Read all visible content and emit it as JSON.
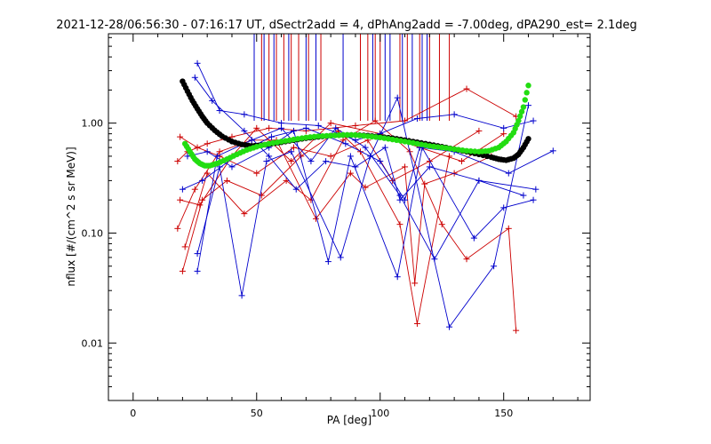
{
  "chart_data": {
    "type": "scatter",
    "title": "2021-12-28/06:56:30 - 07:16:17 UT, dSectr2add = 4, dPhAng2add = -7.00deg, dPA290_est=   2.1deg",
    "xlabel": "PA [deg]",
    "ylabel": "nflux [#/(cm^2 s sr MeV)]",
    "xlim": [
      -10,
      185
    ],
    "ylim": [
      0.003,
      6.5
    ],
    "yscale": "log",
    "grid": false,
    "x_ticks": [
      0,
      50,
      100,
      150
    ],
    "x_tick_labels": [
      "0",
      "50",
      "100",
      "150"
    ],
    "y_ticks": [
      0.01,
      0.1,
      1.0
    ],
    "y_tick_labels": [
      "0.01",
      "0.10",
      "1.00"
    ],
    "colors": {
      "red_series": "#cc0000",
      "blue_series": "#0000cc",
      "black_fit": "#000000",
      "green_fit": "#22dd11"
    },
    "series": [
      {
        "color": "red_series",
        "style": "line+plus",
        "lines": [
          [
            [
              18,
              0.45
            ],
            [
              22,
              0.55
            ],
            [
              30,
              0.65
            ],
            [
              40,
              0.75
            ],
            [
              55,
              0.9
            ],
            [
              70,
              0.85
            ],
            [
              90,
              0.95
            ],
            [
              110,
              1.05
            ],
            [
              135,
              2.05
            ],
            [
              155,
              1.15
            ]
          ],
          [
            [
              19,
              0.75
            ],
            [
              26,
              0.6
            ],
            [
              35,
              0.5
            ],
            [
              50,
              0.35
            ],
            [
              65,
              0.6
            ],
            [
              80,
              0.5
            ],
            [
              95,
              0.7
            ],
            [
              105,
              0.3
            ],
            [
              120,
              0.45
            ],
            [
              140,
              0.85
            ]
          ],
          [
            [
              20,
              0.045
            ],
            [
              28,
              0.2
            ],
            [
              38,
              0.3
            ],
            [
              52,
              0.22
            ],
            [
              68,
              0.5
            ],
            [
              83,
              0.85
            ],
            [
              92,
              0.55
            ],
            [
              108,
              0.12
            ],
            [
              115,
              0.015
            ],
            [
              128,
              0.5
            ]
          ],
          [
            [
              21,
              0.075
            ],
            [
              30,
              0.35
            ],
            [
              45,
              0.15
            ],
            [
              62,
              0.3
            ],
            [
              72,
              0.2
            ],
            [
              85,
              0.7
            ],
            [
              98,
              1.05
            ],
            [
              112,
              0.55
            ],
            [
              125,
              0.12
            ],
            [
              135,
              0.058
            ],
            [
              152,
              0.11
            ],
            [
              155,
              0.013
            ]
          ],
          [
            [
              18,
              0.11
            ],
            [
              25,
              0.25
            ],
            [
              35,
              0.55
            ],
            [
              48,
              0.7
            ],
            [
              58,
              0.7
            ],
            [
              74,
              0.135
            ],
            [
              88,
              0.35
            ],
            [
              94,
              0.26
            ],
            [
              110,
              0.4
            ],
            [
              114,
              0.035
            ],
            [
              118,
              0.28
            ],
            [
              130,
              0.35
            ],
            [
              145,
              0.5
            ]
          ],
          [
            [
              19,
              0.2
            ],
            [
              27,
              0.18
            ],
            [
              40,
              0.5
            ],
            [
              50,
              0.9
            ],
            [
              64,
              0.45
            ],
            [
              80,
              1.0
            ],
            [
              100,
              0.8
            ],
            [
              116,
              0.6
            ],
            [
              133,
              0.45
            ],
            [
              150,
              0.8
            ]
          ]
        ]
      },
      {
        "color": "blue_series",
        "style": "line+plus",
        "lines": [
          [
            [
              26,
              3.5
            ],
            [
              35,
              1.3
            ],
            [
              45,
              1.2
            ],
            [
              60,
              1.0
            ],
            [
              75,
              0.95
            ],
            [
              90,
              0.7
            ],
            [
              100,
              0.8
            ],
            [
              115,
              1.1
            ],
            [
              130,
              1.2
            ],
            [
              150,
              0.9
            ],
            [
              162,
              1.05
            ]
          ],
          [
            [
              25,
              2.6
            ],
            [
              32,
              1.6
            ],
            [
              45,
              0.85
            ],
            [
              55,
              0.5
            ],
            [
              66,
              0.25
            ],
            [
              78,
              0.45
            ],
            [
              90,
              0.4
            ],
            [
              102,
              0.6
            ],
            [
              108,
              0.2
            ],
            [
              120,
              0.4
            ],
            [
              140,
              0.3
            ],
            [
              158,
              0.22
            ]
          ],
          [
            [
              26,
              0.065
            ],
            [
              35,
              0.4
            ],
            [
              44,
              0.027
            ],
            [
              54,
              0.45
            ],
            [
              64,
              0.55
            ],
            [
              84,
              0.06
            ],
            [
              96,
              0.5
            ],
            [
              107,
              1.7
            ],
            [
              128,
              0.014
            ],
            [
              146,
              0.05
            ],
            [
              160,
              1.45
            ]
          ],
          [
            [
              26,
              0.045
            ],
            [
              34,
              0.5
            ],
            [
              48,
              0.7
            ],
            [
              60,
              0.9
            ],
            [
              72,
              0.45
            ],
            [
              82,
              0.9
            ],
            [
              94,
              0.6
            ],
            [
              108,
              0.22
            ],
            [
              122,
              0.058
            ],
            [
              140,
              0.3
            ],
            [
              163,
              0.25
            ]
          ],
          [
            [
              20,
              0.25
            ],
            [
              28,
              0.3
            ],
            [
              44,
              0.55
            ],
            [
              56,
              0.75
            ],
            [
              70,
              0.9
            ],
            [
              86,
              0.65
            ],
            [
              100,
              0.45
            ],
            [
              110,
              0.2
            ],
            [
              116,
              0.6
            ],
            [
              130,
              0.55
            ],
            [
              152,
              0.35
            ],
            [
              170,
              0.56
            ]
          ],
          [
            [
              22,
              0.5
            ],
            [
              30,
              0.55
            ],
            [
              40,
              0.4
            ],
            [
              55,
              0.6
            ],
            [
              65,
              0.85
            ],
            [
              79,
              0.055
            ],
            [
              88,
              0.5
            ],
            [
              107,
              0.04
            ],
            [
              117,
              0.6
            ],
            [
              138,
              0.09
            ],
            [
              150,
              0.17
            ],
            [
              162,
              0.2
            ]
          ]
        ]
      }
    ],
    "fits": [
      {
        "color": "black_fit",
        "points": [
          [
            20,
            2.4
          ],
          [
            22,
            1.95
          ],
          [
            24,
            1.6
          ],
          [
            26,
            1.35
          ],
          [
            28,
            1.15
          ],
          [
            30,
            1.0
          ],
          [
            33,
            0.86
          ],
          [
            36,
            0.76
          ],
          [
            40,
            0.68
          ],
          [
            44,
            0.64
          ],
          [
            48,
            0.62
          ],
          [
            52,
            0.63
          ],
          [
            56,
            0.65
          ],
          [
            60,
            0.67
          ],
          [
            65,
            0.7
          ],
          [
            70,
            0.73
          ],
          [
            75,
            0.75
          ],
          [
            80,
            0.77
          ],
          [
            85,
            0.78
          ],
          [
            90,
            0.78
          ],
          [
            95,
            0.77
          ],
          [
            100,
            0.75
          ],
          [
            105,
            0.73
          ],
          [
            110,
            0.7
          ],
          [
            115,
            0.67
          ],
          [
            120,
            0.64
          ],
          [
            125,
            0.61
          ],
          [
            130,
            0.58
          ],
          [
            135,
            0.55
          ],
          [
            140,
            0.52
          ],
          [
            145,
            0.49
          ],
          [
            148,
            0.47
          ],
          [
            151,
            0.46
          ],
          [
            154,
            0.48
          ],
          [
            156,
            0.52
          ],
          [
            158,
            0.6
          ],
          [
            160,
            0.72
          ]
        ]
      },
      {
        "color": "green_fit",
        "points": [
          [
            21,
            0.65
          ],
          [
            23,
            0.55
          ],
          [
            25,
            0.47
          ],
          [
            27,
            0.43
          ],
          [
            29,
            0.41
          ],
          [
            31,
            0.41
          ],
          [
            34,
            0.43
          ],
          [
            38,
            0.47
          ],
          [
            42,
            0.52
          ],
          [
            46,
            0.57
          ],
          [
            50,
            0.61
          ],
          [
            55,
            0.65
          ],
          [
            60,
            0.68
          ],
          [
            65,
            0.71
          ],
          [
            70,
            0.74
          ],
          [
            75,
            0.76
          ],
          [
            80,
            0.77
          ],
          [
            85,
            0.78
          ],
          [
            90,
            0.78
          ],
          [
            95,
            0.76
          ],
          [
            100,
            0.74
          ],
          [
            105,
            0.71
          ],
          [
            110,
            0.68
          ],
          [
            115,
            0.65
          ],
          [
            120,
            0.62
          ],
          [
            125,
            0.6
          ],
          [
            130,
            0.58
          ],
          [
            135,
            0.56
          ],
          [
            140,
            0.55
          ],
          [
            144,
            0.56
          ],
          [
            148,
            0.6
          ],
          [
            151,
            0.68
          ],
          [
            154,
            0.82
          ],
          [
            156,
            1.05
          ],
          [
            158,
            1.4
          ],
          [
            160,
            2.2
          ]
        ]
      }
    ],
    "vertical_markers": {
      "red": [
        52,
        55,
        58,
        61,
        64,
        67,
        71,
        76,
        92,
        95,
        98,
        100,
        108,
        111,
        116,
        120,
        124,
        128
      ],
      "blue": [
        49,
        53,
        57,
        63,
        70,
        74,
        85,
        97,
        102,
        104,
        109,
        113,
        117,
        119
      ],
      "top_value": 6.5,
      "bottom_value": 1.05
    }
  }
}
